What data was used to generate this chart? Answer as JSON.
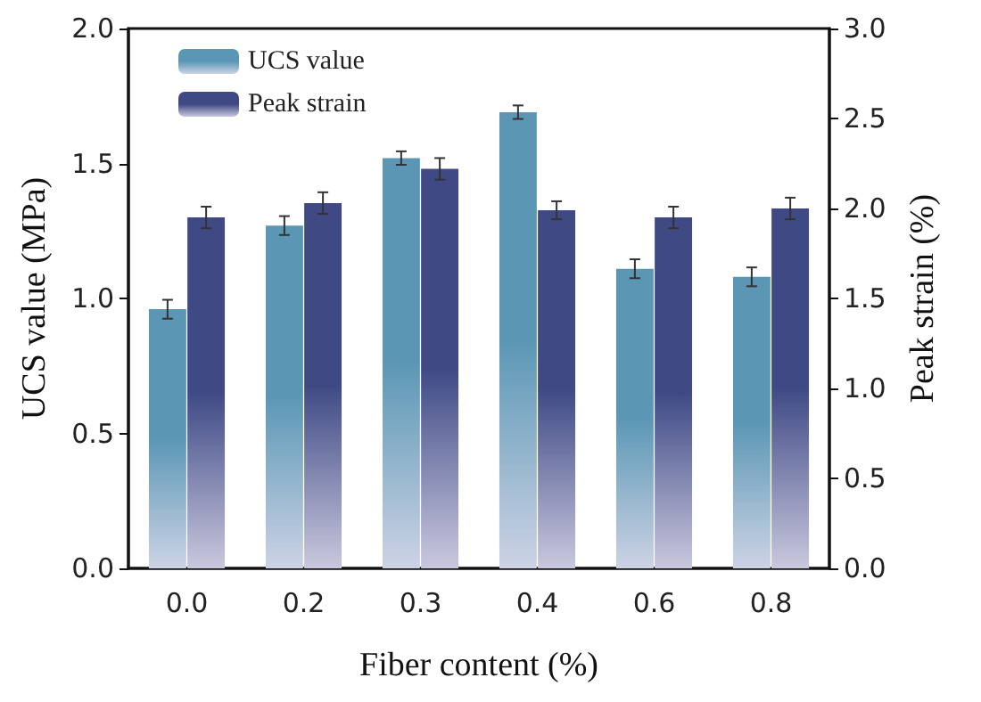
{
  "chart_data": {
    "type": "bar",
    "xlabel": "Fiber content (%)",
    "ylabel": "UCS value (MPa)",
    "y2label": "Peak strain (%)",
    "categories": [
      "0.0",
      "0.2",
      "0.3",
      "0.4",
      "0.6",
      "0.8"
    ],
    "series": [
      {
        "name": "UCS value",
        "color": "#5b97b5",
        "values": [
          0.96,
          1.27,
          1.52,
          1.69,
          1.11,
          1.08
        ],
        "errors": [
          0.035,
          0.035,
          0.025,
          0.025,
          0.035,
          0.035
        ]
      },
      {
        "name": "Peak strain",
        "color": "#3f4a85",
        "axis": "y2",
        "values": [
          1.95,
          2.03,
          2.22,
          1.99,
          1.95,
          2.0
        ],
        "errors": [
          0.06,
          0.06,
          0.06,
          0.05,
          0.06,
          0.06
        ]
      }
    ],
    "ylim": [
      0,
      2
    ],
    "yticks": [
      {
        "value": 0,
        "label": "0.0"
      },
      0.5,
      {
        "value": 1,
        "label": "1.0"
      },
      1.5,
      {
        "value": 2,
        "label": "2.0"
      }
    ],
    "y2lim": [
      0,
      3
    ],
    "y2ticks": [
      {
        "value": 0,
        "label": "0.0"
      },
      0.5,
      {
        "value": 1,
        "label": "1.0"
      },
      1.5,
      {
        "value": 2,
        "label": "2.0"
      },
      2.5,
      {
        "value": 3,
        "label": "3.0"
      }
    ],
    "grid": false,
    "legend": "top left"
  }
}
